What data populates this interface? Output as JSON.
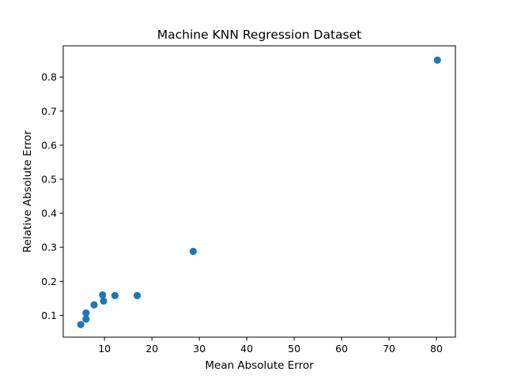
{
  "chart_data": {
    "type": "scatter",
    "title": "Machine KNN Regression Dataset",
    "xlabel": "Mean Absolute Error",
    "ylabel": "Relative Absolute Error",
    "xlim": [
      1.3,
      84.0
    ],
    "ylim": [
      0.036,
      0.892
    ],
    "xticks": [
      10,
      20,
      30,
      40,
      50,
      60,
      70,
      80
    ],
    "yticks": [
      0.1,
      0.2,
      0.3,
      0.4,
      0.5,
      0.6,
      0.7,
      0.8
    ],
    "grid": false,
    "legend": "none",
    "marker_color": "#1f77b4",
    "points": [
      {
        "x": 5.0,
        "y": 0.073
      },
      {
        "x": 6.1,
        "y": 0.089
      },
      {
        "x": 6.1,
        "y": 0.107
      },
      {
        "x": 7.8,
        "y": 0.131
      },
      {
        "x": 9.6,
        "y": 0.16
      },
      {
        "x": 9.8,
        "y": 0.142
      },
      {
        "x": 12.2,
        "y": 0.158
      },
      {
        "x": 16.9,
        "y": 0.158
      },
      {
        "x": 28.7,
        "y": 0.288
      },
      {
        "x": 80.2,
        "y": 0.85
      }
    ]
  }
}
